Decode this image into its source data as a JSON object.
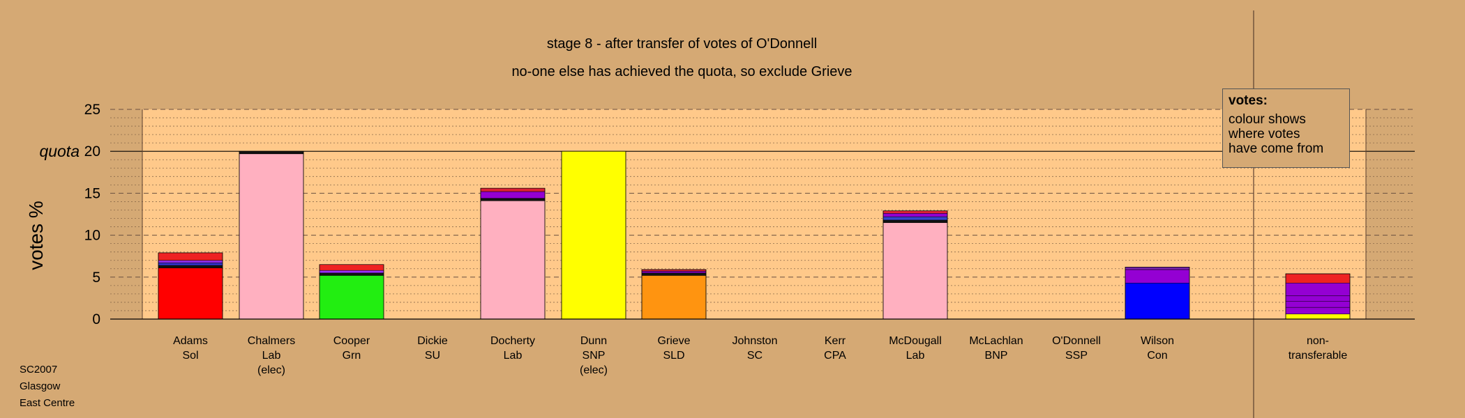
{
  "titles": {
    "line1": "stage 8 - after transfer of votes of O'Donnell",
    "line2": "no-one else has achieved the quota, so exclude Grieve"
  },
  "footer": [
    "SC2007",
    "Glasgow",
    "East Centre"
  ],
  "legend": {
    "title": "votes:",
    "lines": [
      "colour shows",
      "where votes",
      "have come from"
    ]
  },
  "chart_data": {
    "type": "bar",
    "stacked": true,
    "ylabel": "votes %",
    "ylim": [
      0,
      25
    ],
    "yticks": [
      0,
      5,
      10,
      15,
      20,
      25
    ],
    "quota_label": "quota",
    "quota": 20,
    "categories": [
      {
        "name": "Adams",
        "party": "Sol",
        "note": ""
      },
      {
        "name": "Chalmers",
        "party": "Lab",
        "note": "(elec)"
      },
      {
        "name": "Cooper",
        "party": "Grn",
        "note": ""
      },
      {
        "name": "Dickie",
        "party": "SU",
        "note": ""
      },
      {
        "name": "Docherty",
        "party": "Lab",
        "note": ""
      },
      {
        "name": "Dunn",
        "party": "SNP",
        "note": "(elec)"
      },
      {
        "name": "Grieve",
        "party": "SLD",
        "note": ""
      },
      {
        "name": "Johnston",
        "party": "SC",
        "note": ""
      },
      {
        "name": "Kerr",
        "party": "CPA",
        "note": ""
      },
      {
        "name": "McDougall",
        "party": "Lab",
        "note": ""
      },
      {
        "name": "McLachlan",
        "party": "BNP",
        "note": ""
      },
      {
        "name": "O'Donnell",
        "party": "SSP",
        "note": ""
      },
      {
        "name": "Wilson",
        "party": "Con",
        "note": ""
      },
      {
        "name": "non-",
        "party": "transferable",
        "note": ""
      }
    ],
    "segments": [
      [
        {
          "v": 6.1,
          "c": "#ff0000"
        },
        {
          "v": 0.3,
          "c": "#111111"
        },
        {
          "v": 0.3,
          "c": "#3333cc"
        },
        {
          "v": 0.3,
          "c": "#8a2be2"
        },
        {
          "v": 0.9,
          "c": "#ee2222"
        }
      ],
      [
        {
          "v": 19.7,
          "c": "#ffb0c0"
        },
        {
          "v": 0.3,
          "c": "#111111"
        }
      ],
      [
        {
          "v": 5.2,
          "c": "#22ee11"
        },
        {
          "v": 0.3,
          "c": "#111111"
        },
        {
          "v": 0.3,
          "c": "#9b30ff"
        },
        {
          "v": 0.7,
          "c": "#ee2222"
        }
      ],
      [],
      [
        {
          "v": 14.1,
          "c": "#ffb0c0"
        },
        {
          "v": 0.3,
          "c": "#111111"
        },
        {
          "v": 0.8,
          "c": "#9400d3"
        },
        {
          "v": 0.4,
          "c": "#dd2233"
        }
      ],
      [
        {
          "v": 20.0,
          "c": "#ffff00"
        }
      ],
      [
        {
          "v": 5.2,
          "c": "#ff9410"
        },
        {
          "v": 0.3,
          "c": "#111111"
        },
        {
          "v": 0.2,
          "c": "#9400d3"
        },
        {
          "v": 0.2,
          "c": "#dd2233"
        }
      ],
      [],
      [],
      [
        {
          "v": 11.5,
          "c": "#ffb0c0"
        },
        {
          "v": 0.3,
          "c": "#111111"
        },
        {
          "v": 0.4,
          "c": "#3344cc"
        },
        {
          "v": 0.4,
          "c": "#9400d3"
        },
        {
          "v": 0.3,
          "c": "#dd2233"
        }
      ],
      [],
      [],
      [
        {
          "v": 4.3,
          "c": "#0000ff"
        },
        {
          "v": 1.6,
          "c": "#9400d3"
        },
        {
          "v": 0.3,
          "c": "#7722aa"
        }
      ],
      [
        {
          "v": 0.6,
          "c": "#ffff00"
        },
        {
          "v": 0.8,
          "c": "#9400d3"
        },
        {
          "v": 0.7,
          "c": "#9400d3"
        },
        {
          "v": 0.7,
          "c": "#9400d3"
        },
        {
          "v": 1.5,
          "c": "#9400d3"
        },
        {
          "v": 1.1,
          "c": "#ee2222"
        }
      ]
    ]
  }
}
